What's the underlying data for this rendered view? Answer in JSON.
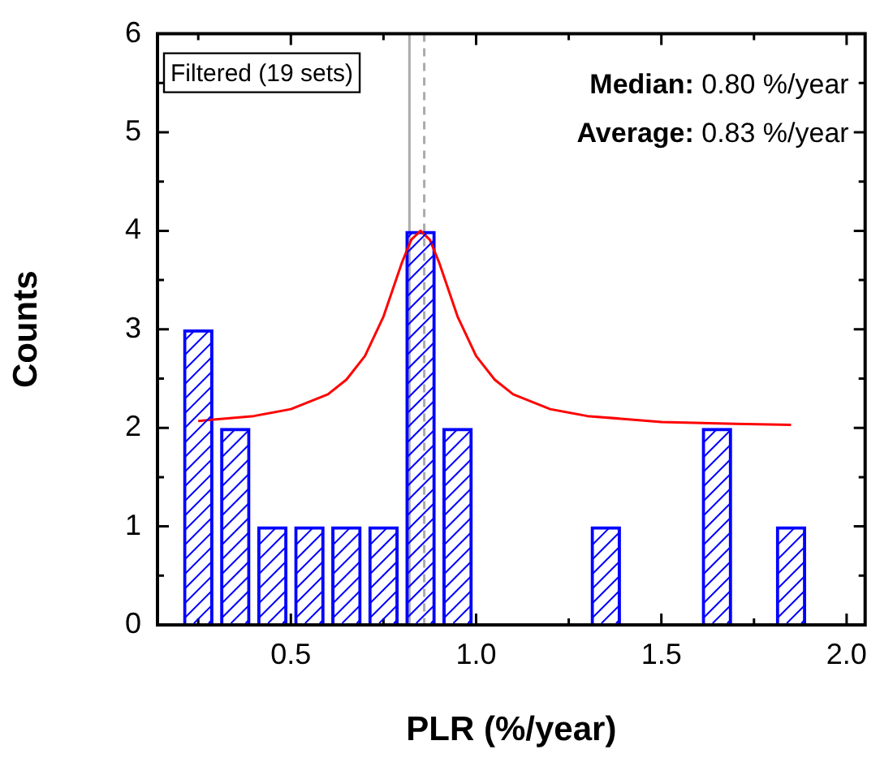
{
  "chart_data": {
    "type": "bar",
    "x": [
      0.25,
      0.35,
      0.45,
      0.55,
      0.65,
      0.75,
      0.85,
      0.95,
      1.35,
      1.65,
      1.85
    ],
    "values": [
      3,
      2,
      1,
      1,
      1,
      1,
      4,
      2,
      1,
      2,
      1
    ],
    "color": "#0000ff",
    "series": [
      {
        "type": "line",
        "color": "#ff0000",
        "x": [
          0.25,
          0.4,
          0.5,
          0.6,
          0.65,
          0.7,
          0.75,
          0.8,
          0.825,
          0.85,
          0.875,
          0.9,
          0.95,
          1.0,
          1.05,
          1.1,
          1.2,
          1.3,
          1.5,
          1.7,
          1.85
        ],
        "values": [
          2.07,
          2.12,
          2.19,
          2.34,
          2.49,
          2.73,
          3.13,
          3.68,
          3.91,
          4.0,
          3.91,
          3.68,
          3.13,
          2.73,
          2.49,
          2.34,
          2.19,
          2.12,
          2.06,
          2.04,
          2.03
        ]
      }
    ],
    "xlabel": "PLR (%/year)",
    "ylabel": "Counts",
    "xlim": [
      0.14,
      2.05
    ],
    "xticks": [
      {
        "value": 0.25,
        "label": null
      },
      {
        "value": 0.5,
        "label": "0.5"
      },
      {
        "value": 0.75,
        "label": null
      },
      {
        "value": 1.0,
        "label": "1.0"
      },
      {
        "value": 1.25,
        "label": null
      },
      {
        "value": 1.5,
        "label": "1.5"
      },
      {
        "value": 1.75,
        "label": null
      },
      {
        "value": 2.0,
        "label": "2.0"
      }
    ],
    "ylim": [
      0,
      6
    ],
    "yticks": [
      0,
      {
        "value": 0.5,
        "label": null
      },
      1,
      {
        "value": 1.5,
        "label": null
      },
      2,
      {
        "value": 2.5,
        "label": null
      },
      3,
      {
        "value": 3.5,
        "label": null
      },
      4,
      {
        "value": 4.5,
        "label": null
      },
      5,
      {
        "value": 5.5,
        "label": null
      },
      6
    ],
    "ref_lines": [
      {
        "axis": "x",
        "value": 0.82,
        "label": null,
        "color": "#aaaaaa",
        "line_style": "solid"
      },
      {
        "axis": "x",
        "value": 0.86,
        "label": null,
        "color": "#aaaaaa",
        "line_style": "dashed"
      }
    ],
    "annotations": [
      "Filtered (19 sets)",
      "Median: 0.80 %/year",
      "Average: 0.83 %/year"
    ],
    "grid": false,
    "legend": false
  }
}
